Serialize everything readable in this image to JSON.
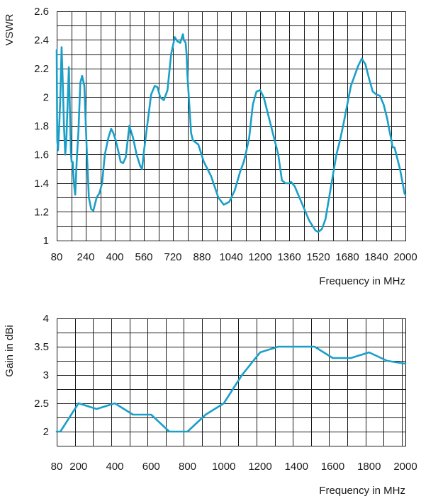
{
  "chart_data": [
    {
      "type": "line",
      "title": "",
      "xlabel": "Frequency in MHz",
      "ylabel": "VSWR",
      "xlim": [
        80,
        2000
      ],
      "ylim": [
        1,
        2.6
      ],
      "grid": true,
      "x_ticks": [
        80,
        240,
        400,
        560,
        720,
        880,
        1040,
        1200,
        1360,
        1520,
        1680,
        1840,
        2000
      ],
      "x_tick_labels": [
        "80",
        "240",
        "400",
        "560",
        "720",
        "880",
        "1040",
        "1200",
        "1360",
        "1520",
        "1680",
        "1840",
        "2000"
      ],
      "y_ticks": [
        1,
        1.2,
        1.4,
        1.6,
        1.8,
        2,
        2.2,
        2.4,
        2.6
      ],
      "y_tick_labels": [
        "1",
        "1.2",
        "1.4",
        "1.6",
        "1.8",
        "2",
        "2.2",
        "2.4",
        "2.6"
      ],
      "x_minor_step": 80,
      "y_minor_step": 0.1,
      "color": "#1a9fc9",
      "series": [
        {
          "x": [
            80,
            83,
            87,
            93,
            100,
            107,
            113,
            120,
            127,
            133,
            140,
            147,
            153,
            158,
            162,
            168,
            175,
            182,
            190,
            200,
            210,
            220,
            232,
            245,
            257,
            270,
            282,
            300,
            315,
            330,
            345,
            365,
            380,
            392,
            405,
            420,
            432,
            445,
            460,
            480,
            500,
            520,
            540,
            550,
            560,
            580,
            600,
            620,
            635,
            650,
            670,
            690,
            710,
            730,
            745,
            760,
            775,
            780,
            790,
            795,
            800,
            810,
            820,
            830,
            860,
            890,
            930,
            970,
            1000,
            1030,
            1060,
            1090,
            1110,
            1120,
            1140,
            1160,
            1180,
            1200,
            1220,
            1240,
            1260,
            1280,
            1300,
            1320,
            1340,
            1360,
            1370,
            1390,
            1410,
            1430,
            1450,
            1470,
            1490,
            1505,
            1520,
            1540,
            1560,
            1580,
            1600,
            1620,
            1640,
            1660,
            1680,
            1700,
            1720,
            1740,
            1760,
            1780,
            1800,
            1820,
            1840,
            1860,
            1880,
            1900,
            1910,
            1920,
            1930,
            1940,
            1950,
            1970,
            1985,
            1995,
            2000
          ],
          "y": [
            2.33,
            1.7,
            1.63,
            1.77,
            2.0,
            2.35,
            2.12,
            1.8,
            1.6,
            1.7,
            1.95,
            2.21,
            1.9,
            1.62,
            1.55,
            1.55,
            1.4,
            1.32,
            1.55,
            1.77,
            2.1,
            2.15,
            2.08,
            1.65,
            1.3,
            1.22,
            1.21,
            1.3,
            1.33,
            1.4,
            1.6,
            1.72,
            1.78,
            1.75,
            1.7,
            1.62,
            1.55,
            1.54,
            1.58,
            1.8,
            1.72,
            1.6,
            1.52,
            1.5,
            1.62,
            1.82,
            2.02,
            2.08,
            2.07,
            2.0,
            1.98,
            2.05,
            2.3,
            2.42,
            2.39,
            2.38,
            2.44,
            2.4,
            2.38,
            2.3,
            2.15,
            1.95,
            1.75,
            1.7,
            1.67,
            1.55,
            1.45,
            1.3,
            1.25,
            1.27,
            1.35,
            1.48,
            1.55,
            1.6,
            1.72,
            1.95,
            2.04,
            2.05,
            2.0,
            1.9,
            1.8,
            1.7,
            1.6,
            1.42,
            1.4,
            1.4,
            1.41,
            1.38,
            1.32,
            1.26,
            1.2,
            1.14,
            1.1,
            1.07,
            1.06,
            1.08,
            1.15,
            1.3,
            1.45,
            1.6,
            1.7,
            1.82,
            1.95,
            2.08,
            2.15,
            2.22,
            2.27,
            2.23,
            2.13,
            2.04,
            2.02,
            2.01,
            1.95,
            1.85,
            1.78,
            1.72,
            1.65,
            1.65,
            1.6,
            1.5,
            1.4,
            1.33,
            1.32
          ]
        }
      ]
    },
    {
      "type": "line",
      "title": "",
      "xlabel": "Frequency in MHz",
      "ylabel": "Gain in dBi",
      "xlim": [
        80,
        2000
      ],
      "ylim": [
        1.75,
        4
      ],
      "grid": true,
      "x_ticks": [
        80,
        200,
        400,
        600,
        800,
        1000,
        1200,
        1400,
        1600,
        1800,
        2000
      ],
      "x_tick_labels": [
        "80",
        "200",
        "400",
        "600",
        "800",
        "1000",
        "1200",
        "1400",
        "1600",
        "1800",
        "2000"
      ],
      "y_ticks": [
        2,
        2.5,
        3,
        3.5,
        4
      ],
      "y_tick_labels": [
        "2",
        "2.5",
        "3",
        "3.5",
        "4"
      ],
      "x_minor_step": 100,
      "y_minor_step": 0.25,
      "color": "#1a9fc9",
      "series": [
        {
          "x": [
            80,
            100,
            200,
            300,
            400,
            500,
            600,
            700,
            800,
            900,
            1000,
            1100,
            1200,
            1300,
            1400,
            1500,
            1600,
            1700,
            1800,
            1900,
            2000
          ],
          "y": [
            2.0,
            2.0,
            2.5,
            2.4,
            2.5,
            2.3,
            2.3,
            2.0,
            2.0,
            2.3,
            2.5,
            3.0,
            3.4,
            3.5,
            3.5,
            3.5,
            3.3,
            3.3,
            3.4,
            3.25,
            3.2
          ]
        }
      ]
    }
  ]
}
